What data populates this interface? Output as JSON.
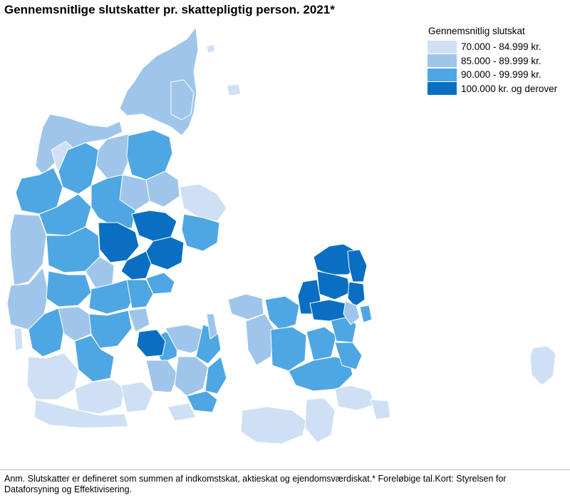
{
  "title": "Gennemsnitlige slutskatter pr. skattepligtig person. 2021*",
  "legend": {
    "title": "Gennemsnitlig slutskat",
    "items": [
      {
        "label": "70.000 - 84.999 kr.",
        "color": "#cfe0f4"
      },
      {
        "label": "85.000 - 89.999 kr.",
        "color": "#9fc6ea"
      },
      {
        "label": "90.000 - 99.999 kr.",
        "color": "#4ea7e2"
      },
      {
        "label": "100.000 kr. og derover",
        "color": "#0a6fc2"
      }
    ]
  },
  "footnote": "Anm. Slutskatter er defineret som summen af indkomstskat, aktieskat og ejendomsværdiskat.* Foreløbige tal.Kort: Styrelsen for Dataforsyning og Effektivisering."
}
